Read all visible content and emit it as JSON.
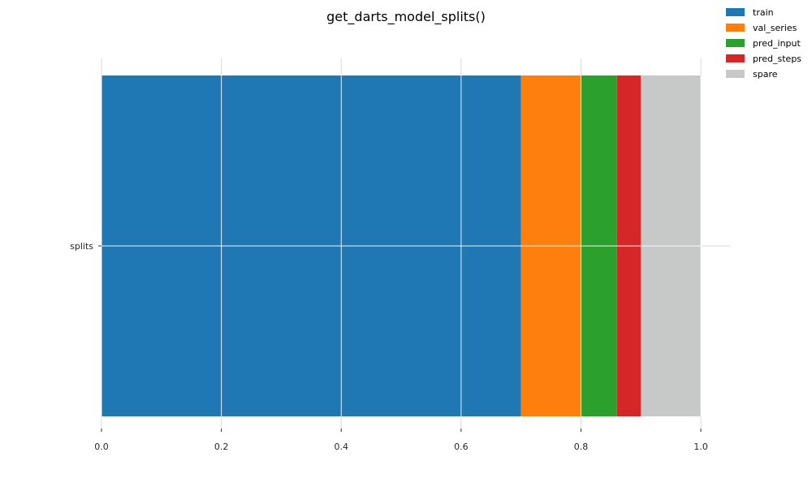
{
  "chart_data": {
    "type": "bar",
    "orientation": "horizontal",
    "stacked": true,
    "title": "get_darts_model_splits()",
    "xlabel": "",
    "ylabel": "",
    "categories": [
      "splits"
    ],
    "xlim": [
      0.0,
      1.05
    ],
    "xticks": [
      "0.0",
      "0.2",
      "0.4",
      "0.6",
      "0.8",
      "1.0"
    ],
    "grid": true,
    "legend_position": "top-right",
    "series": [
      {
        "name": "train",
        "values": [
          0.7
        ],
        "color": "#1f77b4"
      },
      {
        "name": "val_series",
        "values": [
          0.1
        ],
        "color": "#ff7f0e"
      },
      {
        "name": "pred_input",
        "values": [
          0.06
        ],
        "color": "#2ca02c"
      },
      {
        "name": "pred_steps",
        "values": [
          0.04
        ],
        "color": "#d62728"
      },
      {
        "name": "spare",
        "values": [
          0.1
        ],
        "color": "#c7c9c8"
      }
    ]
  }
}
